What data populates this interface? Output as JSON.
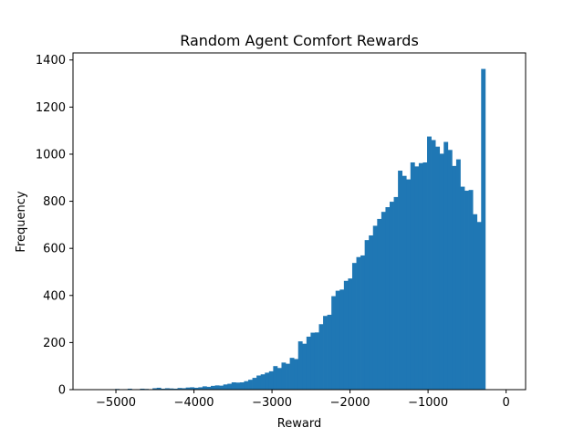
{
  "chart_data": {
    "type": "bar",
    "title": "Random Agent Comfort Rewards",
    "xlabel": "Reward",
    "ylabel": "Frequency",
    "xlim": [
      -5550,
      250
    ],
    "ylim": [
      0,
      1430
    ],
    "xticks": [
      -5000,
      -4000,
      -3000,
      -2000,
      -1000,
      0
    ],
    "xtick_labels": [
      "−5000",
      "−4000",
      "−3000",
      "−2000",
      "−1000",
      "0"
    ],
    "yticks": [
      0,
      200,
      400,
      600,
      800,
      1000,
      1200,
      1400
    ],
    "ytick_labels": [
      "0",
      "200",
      "400",
      "600",
      "800",
      "1000",
      "1200",
      "1400"
    ],
    "grid": false,
    "bar_color": "#1f77b4",
    "bins": {
      "start": -5330,
      "width": 53.3,
      "counts": [
        1,
        0,
        1,
        1,
        0,
        1,
        3,
        0,
        2,
        4,
        1,
        2,
        4,
        3,
        2,
        6,
        8,
        4,
        6,
        5,
        4,
        7,
        6,
        9,
        10,
        8,
        10,
        14,
        12,
        16,
        18,
        17,
        22,
        25,
        31,
        30,
        31,
        36,
        42,
        50,
        60,
        65,
        72,
        78,
        100,
        92,
        115,
        110,
        135,
        130,
        205,
        195,
        225,
        242,
        243,
        278,
        313,
        318,
        397,
        420,
        425,
        462,
        472,
        538,
        563,
        570,
        635,
        655,
        696,
        725,
        755,
        775,
        798,
        818,
        930,
        908,
        893,
        965,
        948,
        962,
        965,
        1075,
        1060,
        1032,
        1002,
        1052,
        1018,
        950,
        978,
        862,
        845,
        848,
        745,
        712,
        1362
      ]
    }
  }
}
